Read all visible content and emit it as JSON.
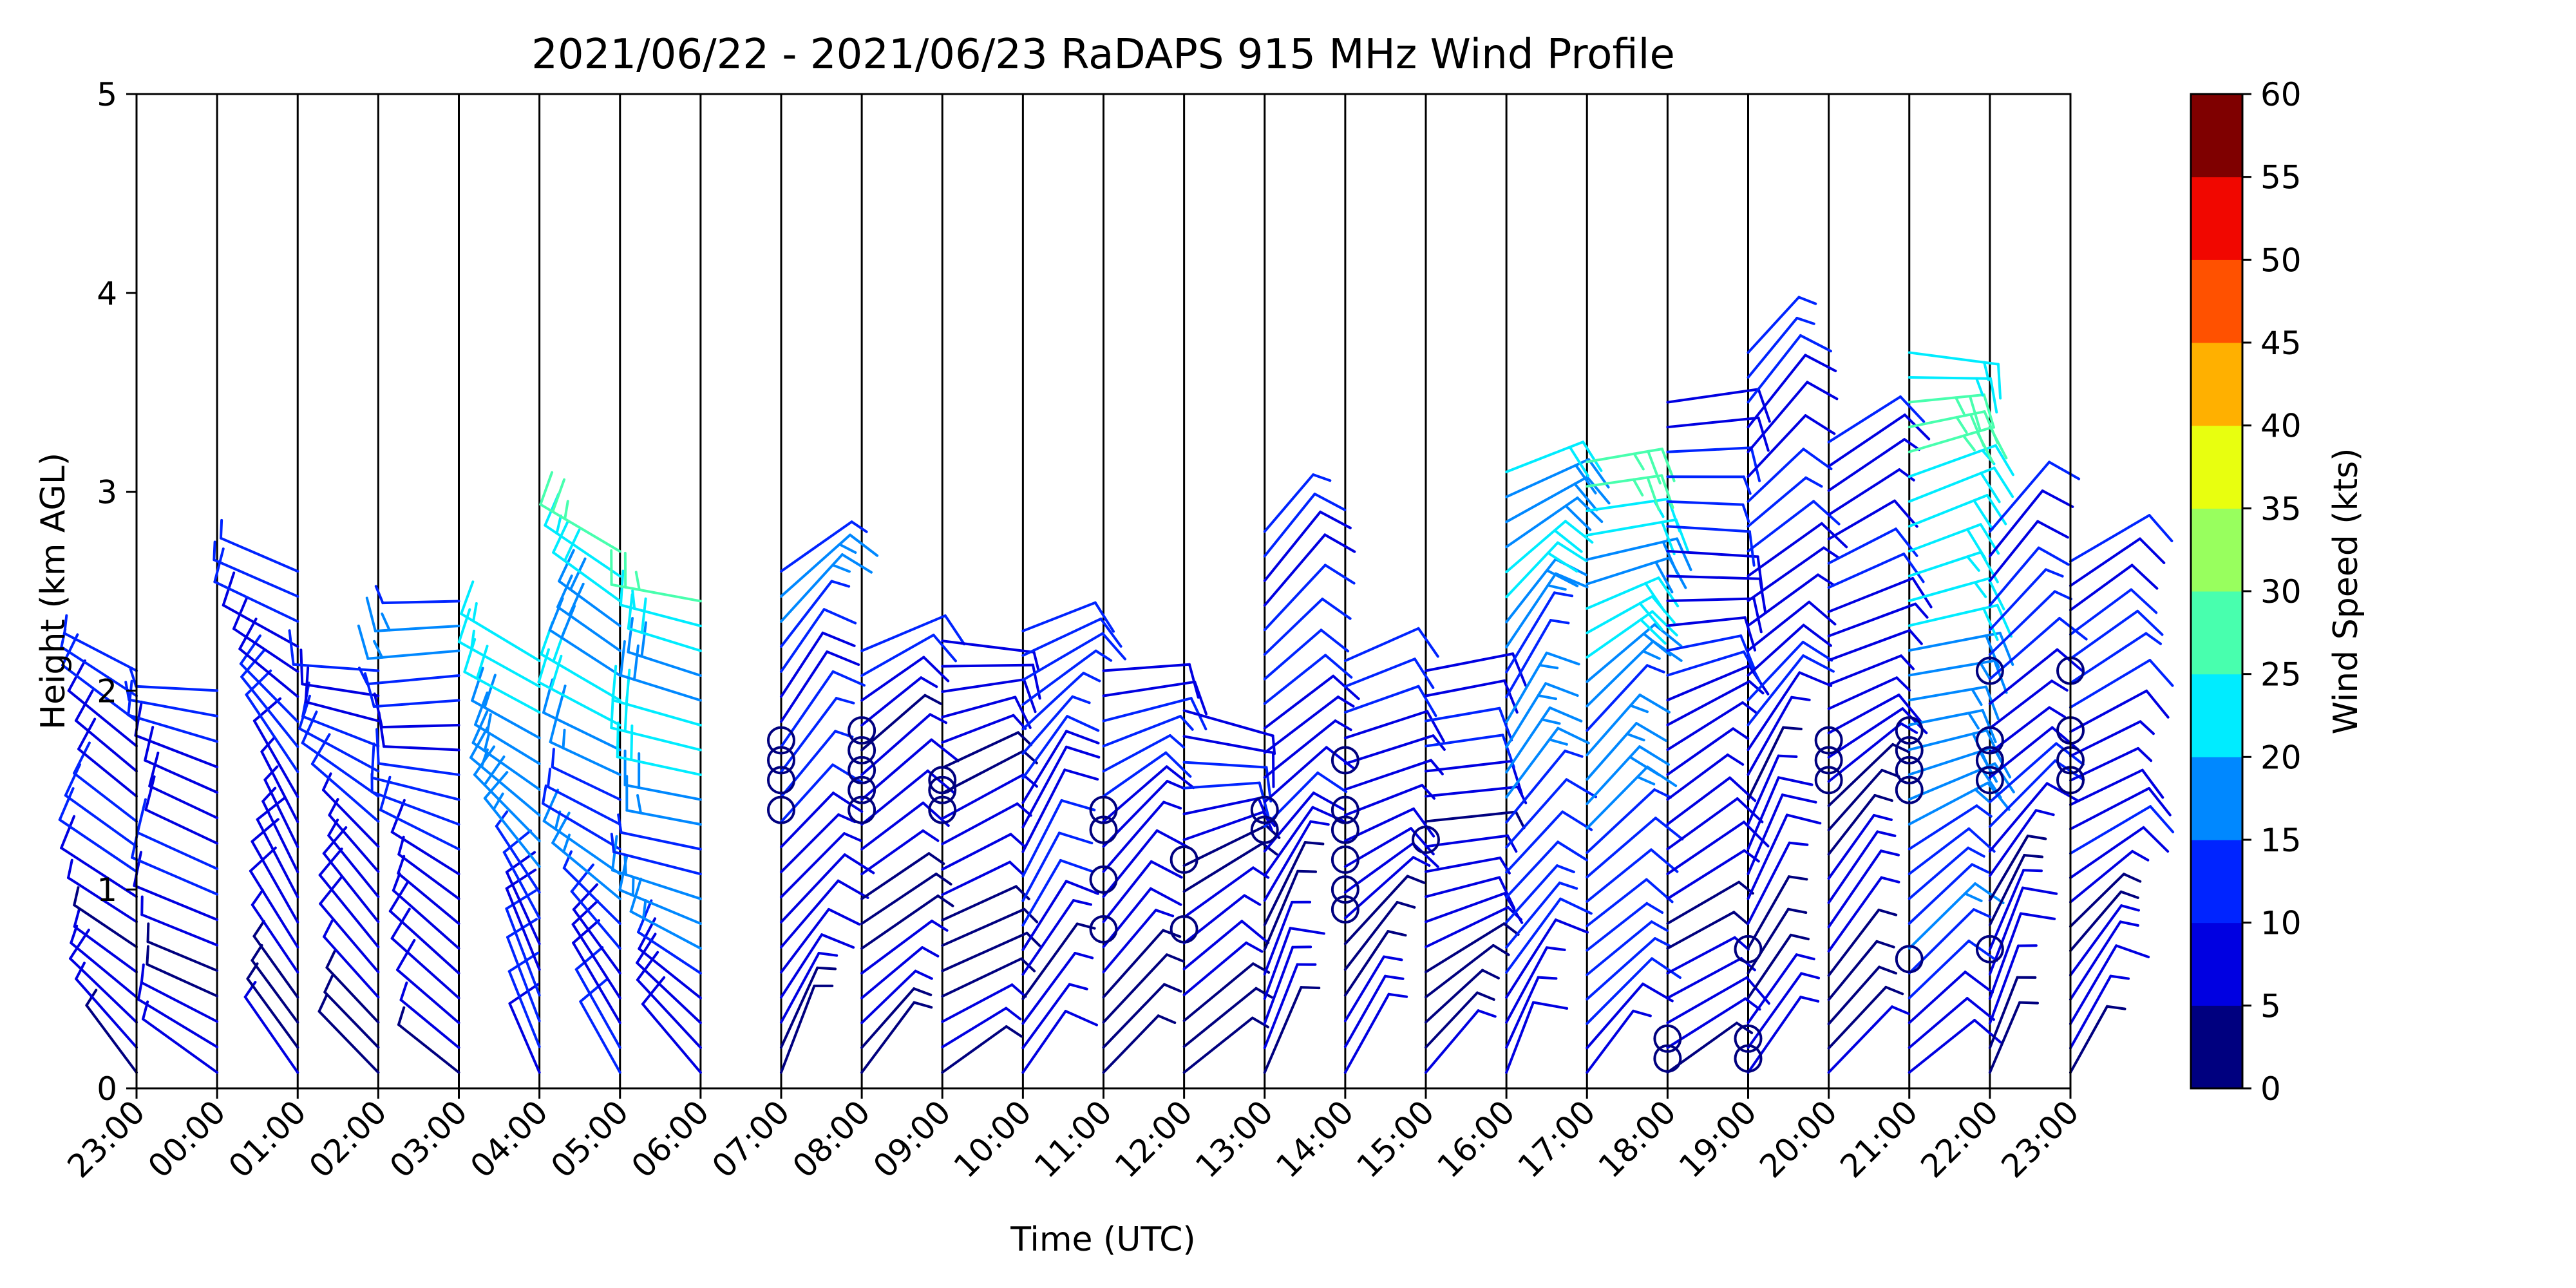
{
  "chart_data": {
    "type": "wind-barb-profile",
    "title": "2021/06/22 - 2021/06/23 RaDAPS 915 MHz Wind Profile",
    "xlabel": "Time (UTC)",
    "ylabel": "Height (km AGL)",
    "x_ticks": [
      "23:00",
      "00:00",
      "01:00",
      "02:00",
      "03:00",
      "04:00",
      "05:00",
      "06:00",
      "07:00",
      "08:00",
      "09:00",
      "10:00",
      "11:00",
      "12:00",
      "13:00",
      "14:00",
      "15:00",
      "16:00",
      "17:00",
      "18:00",
      "19:00",
      "20:00",
      "21:00",
      "22:00",
      "23:00"
    ],
    "y_ticks": [
      "0",
      "1",
      "2",
      "3",
      "4",
      "5"
    ],
    "ylim": [
      0,
      5
    ],
    "colorbar": {
      "label": "Wind Speed (kts)",
      "ticks": [
        "0",
        "5",
        "10",
        "15",
        "20",
        "25",
        "30",
        "35",
        "40",
        "45",
        "50",
        "55",
        "60"
      ],
      "colors": [
        "#00007f",
        "#0000e1",
        "#0024ff",
        "#0088ff",
        "#00ecff",
        "#48ffae",
        "#98ff5e",
        "#e8ff0f",
        "#ffb000",
        "#ff5100",
        "#f10700",
        "#7f0000"
      ]
    },
    "barb_columns": [
      {
        "time": "23:00",
        "top_km": 2.1,
        "speed_kts": 10
      },
      {
        "time": "00:00",
        "top_km": 2.0,
        "speed_kts": 10
      },
      {
        "time": "01:00",
        "top_km": 2.6,
        "speed_kts": 10
      },
      {
        "time": "02:00",
        "top_km": 2.1,
        "speed_kts": 10
      },
      {
        "time": "03:00",
        "top_km": 2.45,
        "speed_kts": 12
      },
      {
        "time": "04:00",
        "top_km": 2.15,
        "speed_kts": 18
      },
      {
        "time": "05:00",
        "top_km": 2.7,
        "speed_kts": 20
      },
      {
        "time": "06:00",
        "top_km": 2.45,
        "speed_kts": 20
      },
      {
        "time": "07:00",
        "top_km": 2.6,
        "speed_kts": 12
      },
      {
        "time": "08:00",
        "top_km": 2.2,
        "speed_kts": 7
      },
      {
        "time": "09:00",
        "top_km": 2.25,
        "speed_kts": 6
      },
      {
        "time": "10:00",
        "top_km": 2.3,
        "speed_kts": 12
      },
      {
        "time": "11:00",
        "top_km": 2.1,
        "speed_kts": 10
      },
      {
        "time": "12:00",
        "top_km": 1.9,
        "speed_kts": 8
      },
      {
        "time": "13:00",
        "top_km": 2.8,
        "speed_kts": 10
      },
      {
        "time": "14:00",
        "top_km": 2.15,
        "speed_kts": 8
      },
      {
        "time": "15:00",
        "top_km": 2.1,
        "speed_kts": 8
      },
      {
        "time": "16:00",
        "top_km": 3.1,
        "speed_kts": 18
      },
      {
        "time": "17:00",
        "top_km": 3.15,
        "speed_kts": 20
      },
      {
        "time": "18:00",
        "top_km": 3.45,
        "speed_kts": 10
      },
      {
        "time": "19:00",
        "top_km": 3.7,
        "speed_kts": 10
      },
      {
        "time": "20:00",
        "top_km": 3.25,
        "speed_kts": 8
      },
      {
        "time": "21:00",
        "top_km": 3.7,
        "speed_kts": 22
      },
      {
        "time": "22:00",
        "top_km": 2.8,
        "speed_kts": 10
      },
      {
        "time": "23:00",
        "top_km": 2.65,
        "speed_kts": 10
      }
    ],
    "calm_markers": [
      {
        "time": "07:00",
        "heights_km": [
          1.4,
          1.55,
          1.65,
          1.75
        ]
      },
      {
        "time": "08:00",
        "heights_km": [
          1.4,
          1.5,
          1.6,
          1.7,
          1.8
        ]
      },
      {
        "time": "09:00",
        "heights_km": [
          1.4,
          1.5,
          1.55
        ]
      },
      {
        "time": "11:00",
        "heights_km": [
          0.8,
          1.05,
          1.3,
          1.4
        ]
      },
      {
        "time": "12:00",
        "heights_km": [
          0.8,
          1.15
        ]
      },
      {
        "time": "13:00",
        "heights_km": [
          1.3,
          1.4
        ]
      },
      {
        "time": "14:00",
        "heights_km": [
          0.9,
          1.0,
          1.15,
          1.3,
          1.4,
          1.65
        ]
      },
      {
        "time": "15:00",
        "heights_km": [
          1.25
        ]
      },
      {
        "time": "18:00",
        "heights_km": [
          0.15,
          0.25
        ]
      },
      {
        "time": "19:00",
        "heights_km": [
          0.15,
          0.25,
          0.7
        ]
      },
      {
        "time": "20:00",
        "heights_km": [
          1.55,
          1.65,
          1.75
        ]
      },
      {
        "time": "21:00",
        "heights_km": [
          0.65,
          1.5,
          1.6,
          1.7,
          1.8
        ]
      },
      {
        "time": "22:00",
        "heights_km": [
          0.7,
          1.55,
          1.65,
          1.75,
          2.1
        ]
      },
      {
        "time": "23:00",
        "heights_km": [
          1.55,
          1.65,
          1.8,
          2.1
        ]
      }
    ]
  }
}
